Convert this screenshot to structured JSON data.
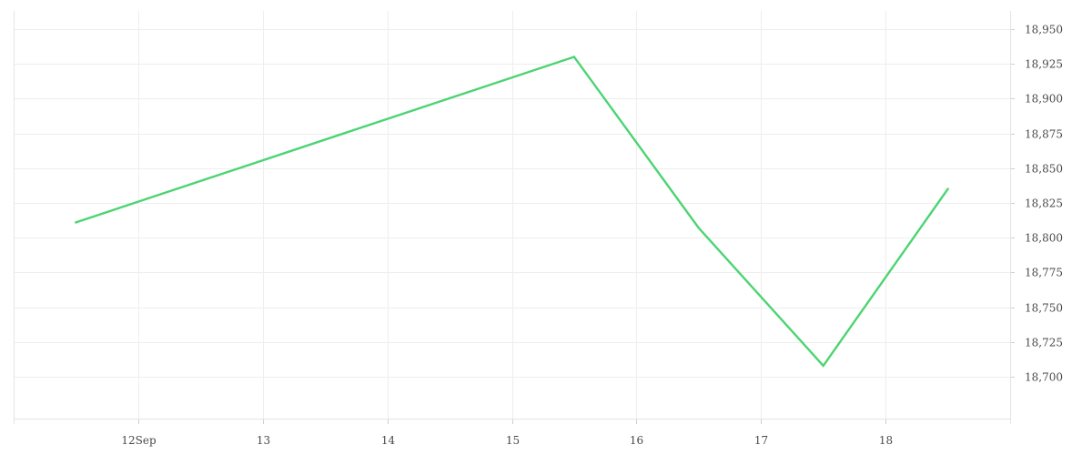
{
  "chart_data": {
    "type": "line",
    "title": "",
    "xlabel": "",
    "ylabel": "",
    "x_ticks": [
      {
        "date": "2023-09-12",
        "label": "12Sep"
      },
      {
        "date": "2023-09-13",
        "label": "13"
      },
      {
        "date": "2023-09-14",
        "label": "14"
      },
      {
        "date": "2023-09-15",
        "label": "15"
      },
      {
        "date": "2023-09-16",
        "label": "16"
      },
      {
        "date": "2023-09-17",
        "label": "17"
      },
      {
        "date": "2023-09-18",
        "label": "18"
      }
    ],
    "xlim": [
      "2023-09-11T00:00",
      "2023-09-19T00:00"
    ],
    "y_ticks": [
      18700,
      18725,
      18750,
      18775,
      18800,
      18825,
      18850,
      18875,
      18900,
      18925,
      18950
    ],
    "y_tick_labels": [
      "18,700",
      "18,725",
      "18,750",
      "18,775",
      "18,800",
      "18,825",
      "18,850",
      "18,875",
      "18,900",
      "18,925",
      "18,950"
    ],
    "ylim": [
      18670,
      18963
    ],
    "y_axis_position": "right",
    "grid": true,
    "series": [
      {
        "color": "#4cd472",
        "points": [
          {
            "x": "2023-09-11T12:00",
            "y": 18811
          },
          {
            "x": "2023-09-15T12:00",
            "y": 18930
          },
          {
            "x": "2023-09-16T12:00",
            "y": 18807
          },
          {
            "x": "2023-09-17T12:00",
            "y": 18708
          },
          {
            "x": "2023-09-18T12:00",
            "y": 18835
          }
        ]
      }
    ]
  }
}
